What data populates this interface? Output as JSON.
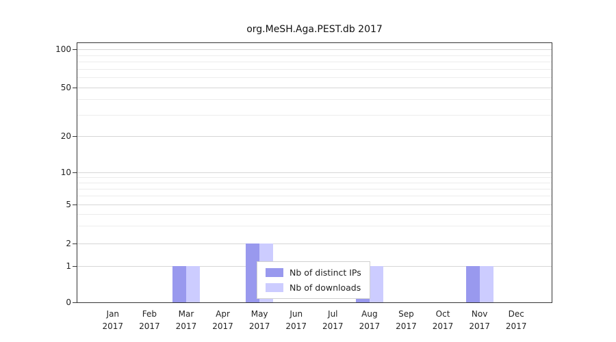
{
  "chart_data": {
    "type": "bar",
    "title": "org.MeSH.Aga.PEST.db 2017",
    "categories": [
      "Jan",
      "Feb",
      "Mar",
      "Apr",
      "May",
      "Jun",
      "Jul",
      "Aug",
      "Sep",
      "Oct",
      "Nov",
      "Dec"
    ],
    "category_year": "2017",
    "series": [
      {
        "name": "Nb of distinct IPs",
        "color": "#9999ee",
        "values": [
          0,
          0,
          1,
          0,
          2,
          0,
          0,
          1,
          0,
          0,
          1,
          0
        ]
      },
      {
        "name": "Nb of downloads",
        "color": "#ccccff",
        "values": [
          0,
          0,
          1,
          0,
          2,
          0,
          0,
          1,
          0,
          0,
          1,
          0
        ]
      }
    ],
    "yticks": [
      0,
      1,
      2,
      5,
      10,
      20,
      50,
      100
    ],
    "ytick_labels": [
      "0",
      "1",
      "2",
      "5",
      "10",
      "20",
      "50",
      "100"
    ],
    "yaxis_scale": "log-with-zero-baseline",
    "ylim": [
      0,
      100
    ],
    "xlabel": "",
    "ylabel": "",
    "grid": true,
    "legend_position": "bottom-center"
  }
}
